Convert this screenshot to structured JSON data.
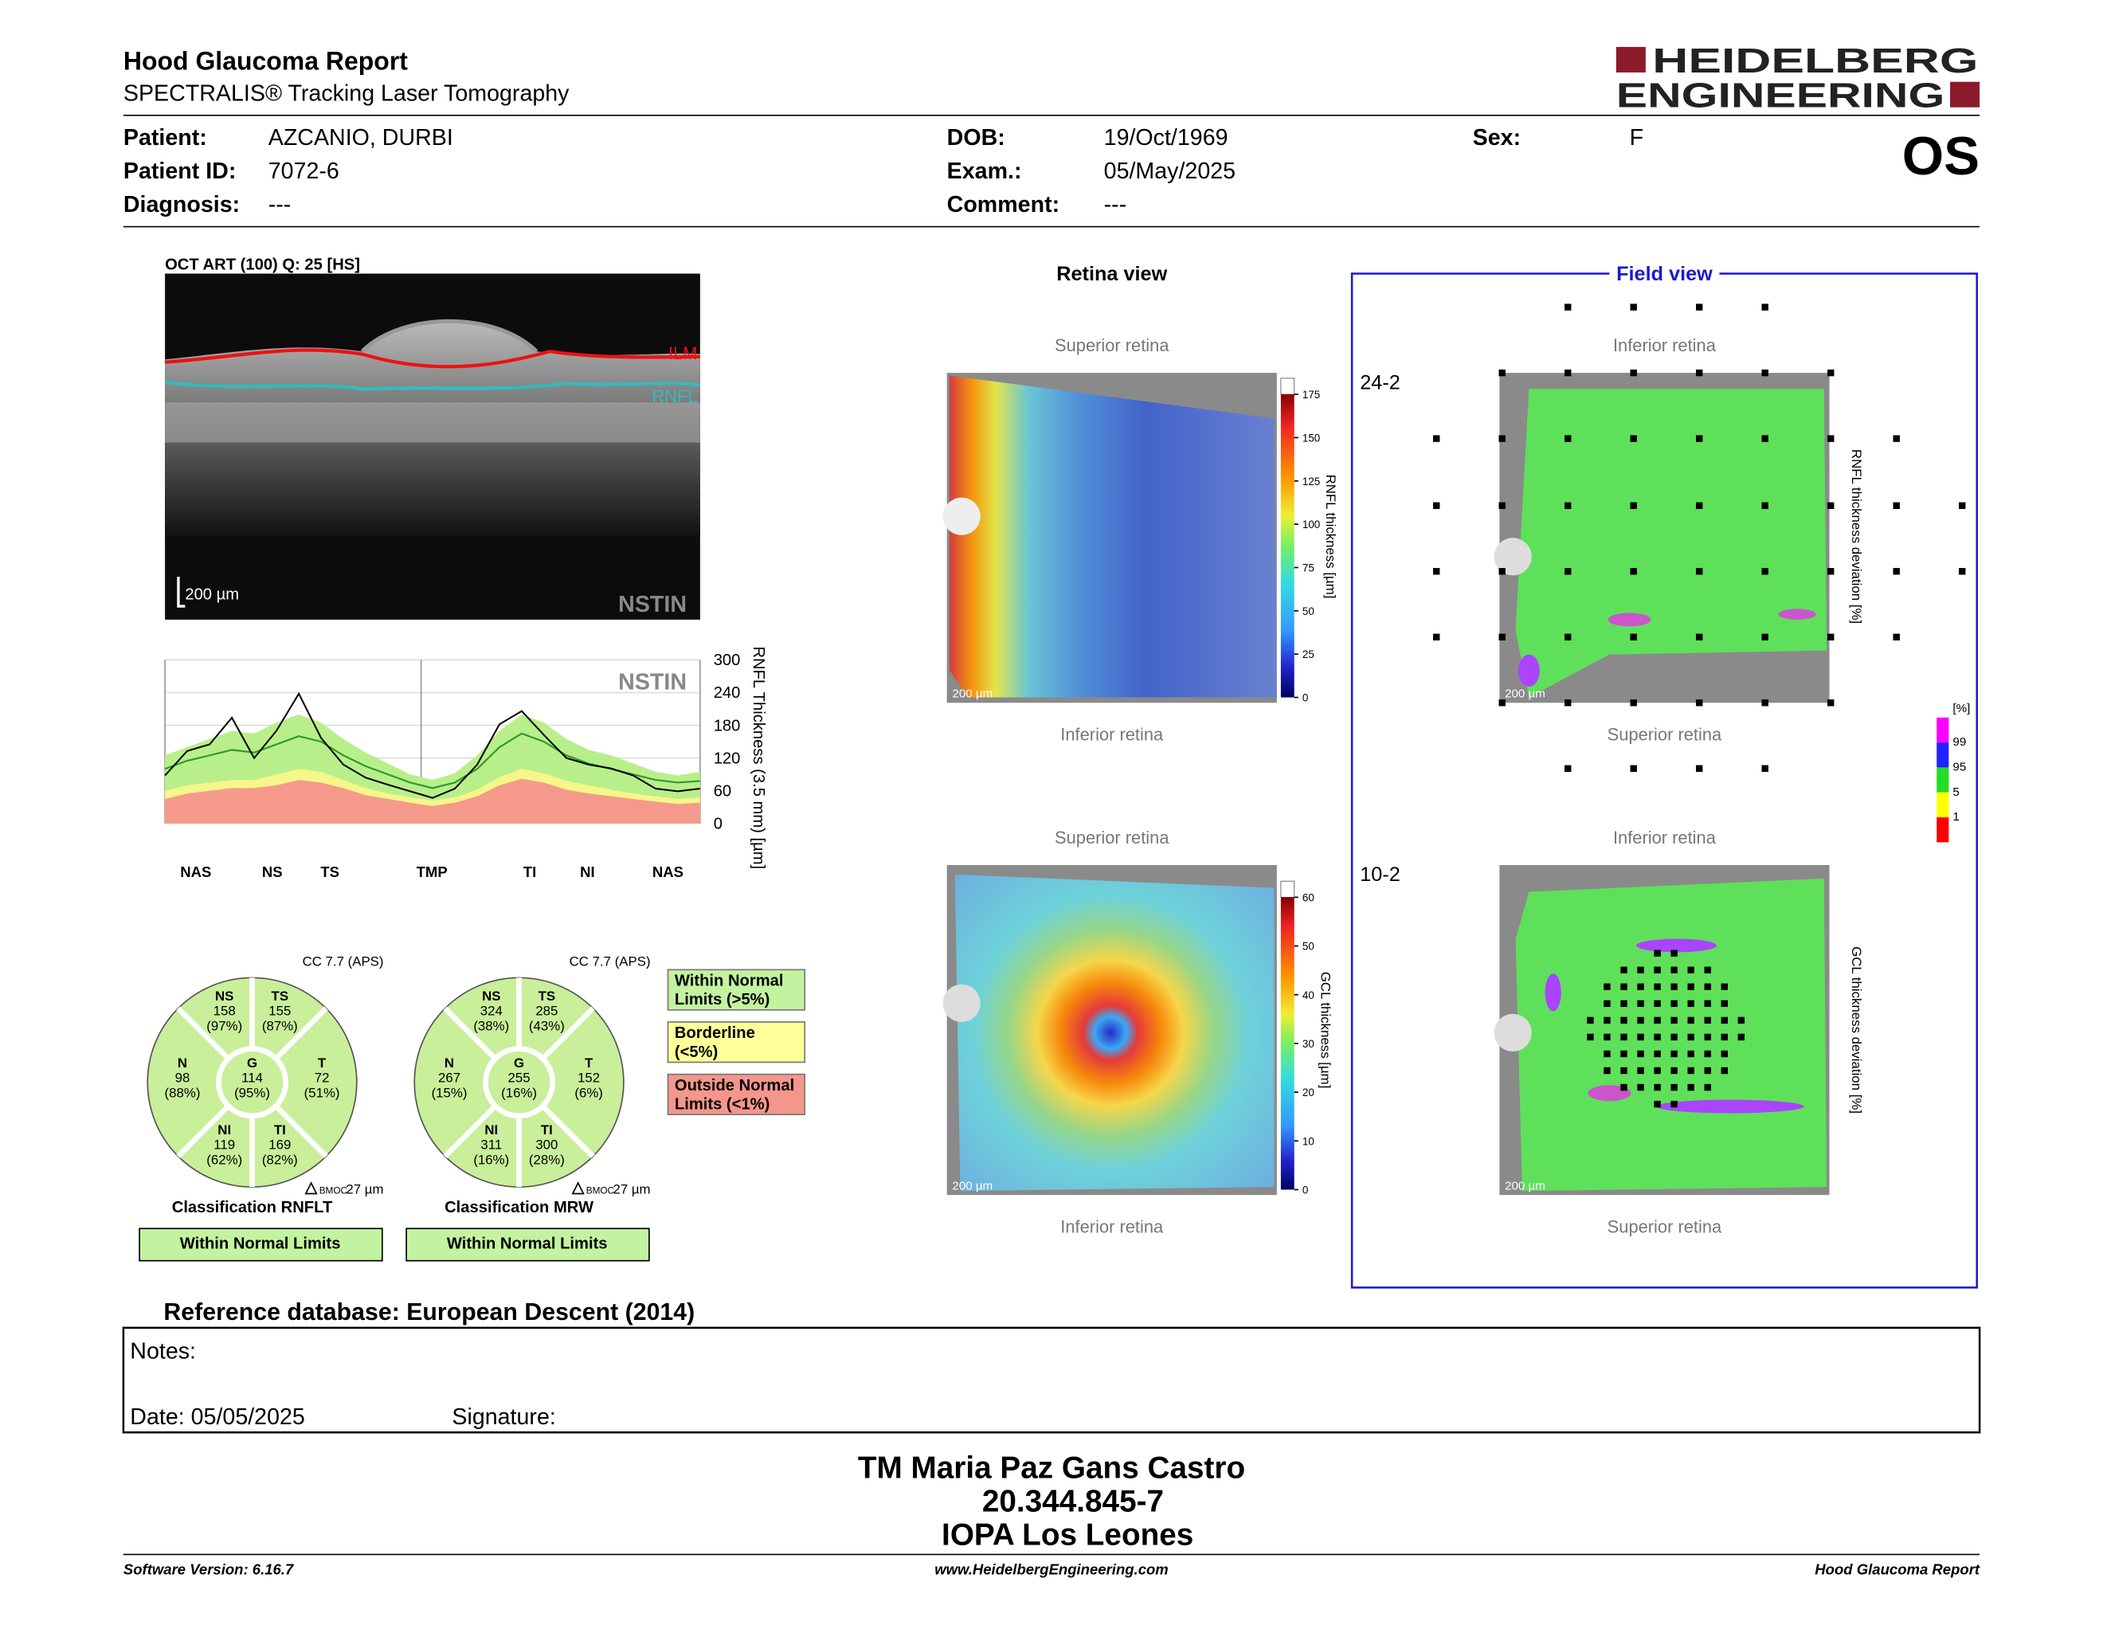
{
  "header": {
    "title": "Hood Glaucoma Report",
    "subtitle": "SPECTRALIS® Tracking Laser Tomography",
    "logo": [
      "HEIDELBERG",
      "ENGINEERING"
    ],
    "eye": "OS"
  },
  "patient": [
    {
      "label": "Patient:",
      "value": "AZCANIO, DURBI"
    },
    {
      "label": "Patient ID:",
      "value": "7072-6"
    },
    {
      "label": "Diagnosis:",
      "value": "---"
    },
    {
      "label": "DOB:",
      "value": "19/Oct/1969"
    },
    {
      "label": "Exam.:",
      "value": "05/May/2025"
    },
    {
      "label": "Comment:",
      "value": "---"
    },
    {
      "label": "Sex:",
      "value": "F"
    }
  ],
  "oct": {
    "title": "OCT ART (100) Q: 25 [HS]",
    "ilm": "ILM",
    "rnfl": "RNFL",
    "scale": "200 µm",
    "mode": "NSTIN"
  },
  "profile": {
    "type": "line",
    "watermark": "NSTIN",
    "ylabel": "RNFL Thickness (3.5 mm) [µm]",
    "ylim": [
      0,
      300
    ],
    "yticks": [
      0,
      60,
      120,
      180,
      240,
      300
    ],
    "sectors": [
      "NAS",
      "NS",
      "TS",
      "TMP",
      "TI",
      "NI",
      "NAS"
    ],
    "series": [
      {
        "name": "p95",
        "color": "#b9ef8a",
        "values": [
          125,
          140,
          155,
          170,
          165,
          185,
          200,
          185,
          155,
          130,
          110,
          90,
          80,
          92,
          125,
          170,
          200,
          185,
          155,
          135,
          125,
          110,
          95,
          88,
          95
        ]
      },
      {
        "name": "p5",
        "color": "#f6f68a",
        "values": [
          60,
          70,
          75,
          80,
          80,
          90,
          100,
          95,
          80,
          65,
          55,
          48,
          42,
          48,
          62,
          85,
          100,
          92,
          78,
          70,
          62,
          55,
          50,
          45,
          48
        ]
      },
      {
        "name": "p1",
        "color": "#f59a8a",
        "values": [
          45,
          55,
          60,
          65,
          65,
          70,
          80,
          75,
          65,
          52,
          45,
          38,
          32,
          38,
          50,
          70,
          82,
          75,
          62,
          55,
          50,
          45,
          40,
          36,
          38
        ]
      },
      {
        "name": "mean",
        "color": "#2f9a2f",
        "values": [
          100,
          115,
          125,
          135,
          130,
          145,
          160,
          150,
          125,
          105,
          90,
          75,
          65,
          75,
          100,
          140,
          165,
          150,
          125,
          110,
          100,
          90,
          80,
          75,
          78
        ]
      },
      {
        "name": "measured",
        "color": "#000000",
        "values": [
          88,
          133,
          145,
          194,
          120,
          170,
          238,
          157,
          108,
          84,
          71,
          59,
          47,
          64,
          108,
          182,
          206,
          162,
          120,
          108,
          101,
          88,
          64,
          59,
          64
        ]
      }
    ]
  },
  "sectors": [
    {
      "method": "CC 7.7 (APS)",
      "bmoc": "BMOC",
      "bmoc_value": "27 µm",
      "classification": "Classification RNFLT",
      "result": "Within Normal Limits",
      "items": [
        {
          "name": "NS",
          "value": 158,
          "percent": "(97%)"
        },
        {
          "name": "TS",
          "value": 155,
          "percent": "(87%)"
        },
        {
          "name": "T",
          "value": 72,
          "percent": "(51%)"
        },
        {
          "name": "TI",
          "value": 169,
          "percent": "(82%)"
        },
        {
          "name": "NI",
          "value": 119,
          "percent": "(62%)"
        },
        {
          "name": "N",
          "value": 98,
          "percent": "(88%)"
        },
        {
          "name": "G",
          "value": 114,
          "percent": "(95%)"
        }
      ]
    },
    {
      "method": "CC 7.7 (APS)",
      "bmoc": "BMOC",
      "bmoc_value": "27 µm",
      "classification": "Classification MRW",
      "result": "Within Normal Limits",
      "items": [
        {
          "name": "NS",
          "value": 324,
          "percent": "(38%)"
        },
        {
          "name": "TS",
          "value": 285,
          "percent": "(43%)"
        },
        {
          "name": "T",
          "value": 152,
          "percent": "(6%)"
        },
        {
          "name": "TI",
          "value": 300,
          "percent": "(28%)"
        },
        {
          "name": "NI",
          "value": 311,
          "percent": "(16%)"
        },
        {
          "name": "N",
          "value": 267,
          "percent": "(15%)"
        },
        {
          "name": "G",
          "value": 255,
          "percent": "(16%)"
        }
      ]
    }
  ],
  "legend": [
    {
      "line1": "Within Normal",
      "line2": "Limits (>5%)",
      "color": "#c3f3a0"
    },
    {
      "line1": "Borderline",
      "line2": "(<5%)",
      "color": "#ffff99"
    },
    {
      "line1": "Outside Normal",
      "line2": "Limits (<1%)",
      "color": "#f4968c"
    }
  ],
  "retina_view": {
    "title": "Retina view",
    "rnfl": {
      "top": "Superior retina",
      "bottom": "Inferior retina",
      "scale": "200 µm",
      "colorbar": {
        "label": "RNFL thickness [µm]",
        "lim": [
          0,
          175
        ],
        "ticks": [
          0,
          25,
          50,
          75,
          100,
          125,
          150,
          175
        ]
      }
    },
    "gcl": {
      "top": "Superior retina",
      "bottom": "Inferior retina",
      "scale": "200 µm",
      "colorbar": {
        "label": "GCL thickness [µm]",
        "lim": [
          0,
          60
        ],
        "ticks": [
          0,
          10,
          20,
          30,
          40,
          50,
          60
        ]
      }
    }
  },
  "field_view": {
    "title": "Field view",
    "grid_24_2": {
      "label": "24-2",
      "top": "Inferior retina",
      "bottom": "Superior retina",
      "scale": "200 µm",
      "axis": "RNFL thickness deviation [%]"
    },
    "grid_10_2": {
      "label": "10-2",
      "top": "Inferior retina",
      "bottom": "Superior retina",
      "scale": "200 µm",
      "axis": "GCL thickness deviation [%]"
    },
    "legend": {
      "unit": "[%]",
      "levels": [
        99,
        95,
        5,
        1
      ]
    }
  },
  "reference": "Reference database: European Descent (2014)",
  "notes": {
    "label": "Notes:",
    "date": "Date: 05/05/2025",
    "signature": "Signature:"
  },
  "signature_block": [
    "TM Maria Paz Gans Castro",
    "20.344.845-7",
    "IOPA Los Leones"
  ],
  "footer": {
    "left": "Software Version: 6.16.7",
    "center": "www.HeidelbergEngineering.com",
    "right": "Hood Glaucoma Report"
  }
}
